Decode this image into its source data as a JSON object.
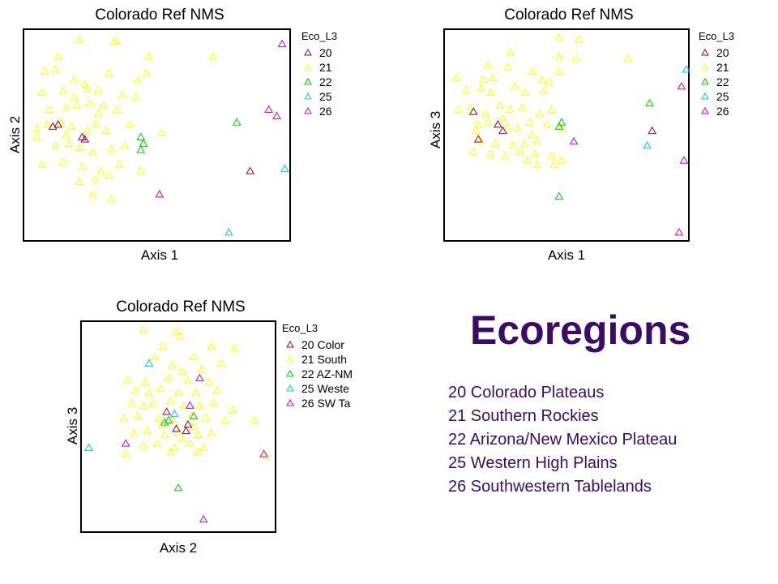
{
  "heading": "Ecoregions",
  "ecoregion_key": [
    "20 Colorado Plateaus",
    "21  Southern Rockies",
    "22  Arizona/New Mexico Plateau",
    "25  Western High Plains",
    "26  Southwestern Tablelands"
  ],
  "colors": {
    "20": "#990033",
    "21": "#ffff00",
    "22": "#00cc00",
    "25": "#00cccc",
    "26": "#cc00cc"
  },
  "chart_data": [
    {
      "type": "scatter",
      "title": "Colorado Ref NMS",
      "xlabel": "Axis 1",
      "ylabel": "Axis 2",
      "legend_title": "Eco_L3",
      "legend_position": "right",
      "legend_entries": [
        "20",
        "21",
        "22",
        "25",
        "26"
      ],
      "series": [
        {
          "name": "20",
          "points": [
            [
              0.11,
              0.54
            ],
            [
              0.13,
              0.55
            ],
            [
              0.23,
              0.48
            ],
            [
              0.22,
              0.49
            ],
            [
              0.85,
              0.33
            ]
          ]
        },
        {
          "name": "21",
          "points": [
            [
              0.21,
              0.95
            ],
            [
              0.34,
              0.94
            ],
            [
              0.35,
              0.94
            ],
            [
              0.13,
              0.87
            ],
            [
              0.47,
              0.87
            ],
            [
              0.71,
              0.87
            ],
            [
              0.08,
              0.8
            ],
            [
              0.12,
              0.81
            ],
            [
              0.19,
              0.76
            ],
            [
              0.23,
              0.74
            ],
            [
              0.32,
              0.79
            ],
            [
              0.46,
              0.79
            ],
            [
              0.07,
              0.7
            ],
            [
              0.15,
              0.71
            ],
            [
              0.24,
              0.72
            ],
            [
              0.28,
              0.71
            ],
            [
              0.37,
              0.69
            ],
            [
              0.42,
              0.68
            ],
            [
              0.1,
              0.62
            ],
            [
              0.16,
              0.63
            ],
            [
              0.2,
              0.64
            ],
            [
              0.25,
              0.65
            ],
            [
              0.3,
              0.64
            ],
            [
              0.35,
              0.62
            ],
            [
              0.05,
              0.53
            ],
            [
              0.09,
              0.55
            ],
            [
              0.14,
              0.56
            ],
            [
              0.18,
              0.54
            ],
            [
              0.27,
              0.55
            ],
            [
              0.31,
              0.52
            ],
            [
              0.4,
              0.55
            ],
            [
              0.52,
              0.51
            ],
            [
              0.12,
              0.45
            ],
            [
              0.17,
              0.46
            ],
            [
              0.21,
              0.44
            ],
            [
              0.26,
              0.42
            ],
            [
              0.33,
              0.43
            ],
            [
              0.38,
              0.45
            ],
            [
              0.07,
              0.36
            ],
            [
              0.15,
              0.37
            ],
            [
              0.22,
              0.35
            ],
            [
              0.29,
              0.33
            ],
            [
              0.36,
              0.36
            ],
            [
              0.44,
              0.33
            ],
            [
              0.21,
              0.28
            ],
            [
              0.27,
              0.29
            ],
            [
              0.32,
              0.31
            ],
            [
              0.26,
              0.22
            ],
            [
              0.33,
              0.2
            ],
            [
              0.05,
              0.49
            ],
            [
              0.43,
              0.76
            ],
            [
              0.19,
              0.68
            ],
            [
              0.28,
              0.6
            ],
            [
              0.24,
              0.52
            ],
            [
              0.16,
              0.5
            ]
          ]
        },
        {
          "name": "22",
          "points": [
            [
              0.8,
              0.56
            ],
            [
              0.44,
              0.49
            ],
            [
              0.45,
              0.46
            ],
            [
              0.44,
              0.43
            ]
          ]
        },
        {
          "name": "25",
          "points": [
            [
              0.98,
              0.34
            ],
            [
              0.77,
              0.04
            ]
          ]
        },
        {
          "name": "26",
          "points": [
            [
              0.97,
              0.93
            ],
            [
              0.92,
              0.62
            ],
            [
              0.95,
              0.59
            ],
            [
              0.51,
              0.22
            ]
          ]
        }
      ]
    },
    {
      "type": "scatter",
      "title": "Colorado Ref NMS",
      "xlabel": "Axis 1",
      "ylabel": "Axis 3",
      "legend_title": "Eco_L3",
      "legend_position": "right",
      "legend_entries": [
        "20",
        "21",
        "22",
        "25",
        "26"
      ],
      "series": [
        {
          "name": "20",
          "points": [
            [
              0.12,
              0.61
            ],
            [
              0.22,
              0.55
            ],
            [
              0.24,
              0.52
            ],
            [
              0.14,
              0.48
            ],
            [
              0.85,
              0.52
            ]
          ]
        },
        {
          "name": "21",
          "points": [
            [
              0.47,
              0.96
            ],
            [
              0.55,
              0.95
            ],
            [
              0.27,
              0.89
            ],
            [
              0.47,
              0.87
            ],
            [
              0.54,
              0.86
            ],
            [
              0.75,
              0.86
            ],
            [
              0.18,
              0.83
            ],
            [
              0.26,
              0.82
            ],
            [
              0.36,
              0.8
            ],
            [
              0.47,
              0.8
            ],
            [
              0.05,
              0.77
            ],
            [
              0.16,
              0.76
            ],
            [
              0.2,
              0.77
            ],
            [
              0.4,
              0.76
            ],
            [
              0.43,
              0.75
            ],
            [
              0.09,
              0.71
            ],
            [
              0.15,
              0.72
            ],
            [
              0.19,
              0.7
            ],
            [
              0.29,
              0.73
            ],
            [
              0.33,
              0.7
            ],
            [
              0.41,
              0.71
            ],
            [
              0.06,
              0.62
            ],
            [
              0.11,
              0.63
            ],
            [
              0.17,
              0.6
            ],
            [
              0.23,
              0.64
            ],
            [
              0.27,
              0.62
            ],
            [
              0.32,
              0.63
            ],
            [
              0.39,
              0.6
            ],
            [
              0.44,
              0.62
            ],
            [
              0.14,
              0.55
            ],
            [
              0.18,
              0.56
            ],
            [
              0.26,
              0.54
            ],
            [
              0.3,
              0.53
            ],
            [
              0.35,
              0.56
            ],
            [
              0.42,
              0.55
            ],
            [
              0.48,
              0.53
            ],
            [
              0.15,
              0.47
            ],
            [
              0.21,
              0.46
            ],
            [
              0.28,
              0.45
            ],
            [
              0.33,
              0.46
            ],
            [
              0.38,
              0.47
            ],
            [
              0.12,
              0.42
            ],
            [
              0.19,
              0.41
            ],
            [
              0.25,
              0.4
            ],
            [
              0.31,
              0.42
            ],
            [
              0.37,
              0.41
            ],
            [
              0.44,
              0.4
            ],
            [
              0.34,
              0.38
            ],
            [
              0.38,
              0.36
            ],
            [
              0.48,
              0.38
            ],
            [
              0.45,
              0.36
            ],
            [
              0.24,
              0.58
            ],
            [
              0.13,
              0.52
            ],
            [
              0.36,
              0.5
            ]
          ]
        },
        {
          "name": "22",
          "points": [
            [
              0.84,
              0.65
            ],
            [
              0.48,
              0.56
            ],
            [
              0.47,
              0.54
            ],
            [
              0.47,
              0.21
            ]
          ]
        },
        {
          "name": "25",
          "points": [
            [
              0.99,
              0.81
            ],
            [
              0.83,
              0.45
            ]
          ]
        },
        {
          "name": "26",
          "points": [
            [
              0.97,
              0.73
            ],
            [
              0.53,
              0.47
            ],
            [
              0.98,
              0.38
            ],
            [
              0.96,
              0.04
            ]
          ]
        }
      ]
    },
    {
      "type": "scatter",
      "title": "Colorado Ref NMS",
      "xlabel": "Axis 2",
      "ylabel": "Axis 3",
      "legend_title": "Eco_L3",
      "legend_position": "right",
      "legend_entries": [
        "20  Color",
        "21  South",
        "22  AZ-NM",
        "25  Weste",
        "26 SW Ta"
      ],
      "series": [
        {
          "name": "20",
          "points": [
            [
              0.44,
              0.57
            ],
            [
              0.55,
              0.51
            ],
            [
              0.49,
              0.49
            ],
            [
              0.54,
              0.48
            ]
          ]
        },
        {
          "name": "21",
          "points": [
            [
              0.32,
              0.96
            ],
            [
              0.49,
              0.95
            ],
            [
              0.51,
              0.93
            ],
            [
              0.42,
              0.88
            ],
            [
              0.67,
              0.88
            ],
            [
              0.79,
              0.87
            ],
            [
              0.38,
              0.83
            ],
            [
              0.58,
              0.83
            ],
            [
              0.72,
              0.8
            ],
            [
              0.47,
              0.79
            ],
            [
              0.52,
              0.76
            ],
            [
              0.62,
              0.77
            ],
            [
              0.24,
              0.72
            ],
            [
              0.33,
              0.71
            ],
            [
              0.45,
              0.73
            ],
            [
              0.55,
              0.72
            ],
            [
              0.66,
              0.71
            ],
            [
              0.28,
              0.67
            ],
            [
              0.35,
              0.66
            ],
            [
              0.41,
              0.68
            ],
            [
              0.5,
              0.66
            ],
            [
              0.59,
              0.66
            ],
            [
              0.7,
              0.67
            ],
            [
              0.26,
              0.61
            ],
            [
              0.32,
              0.6
            ],
            [
              0.37,
              0.61
            ],
            [
              0.46,
              0.62
            ],
            [
              0.53,
              0.6
            ],
            [
              0.61,
              0.6
            ],
            [
              0.68,
              0.61
            ],
            [
              0.78,
              0.58
            ],
            [
              0.22,
              0.54
            ],
            [
              0.29,
              0.55
            ],
            [
              0.4,
              0.54
            ],
            [
              0.47,
              0.53
            ],
            [
              0.57,
              0.55
            ],
            [
              0.64,
              0.54
            ],
            [
              0.74,
              0.53
            ],
            [
              0.89,
              0.53
            ],
            [
              0.27,
              0.47
            ],
            [
              0.34,
              0.48
            ],
            [
              0.43,
              0.46
            ],
            [
              0.5,
              0.47
            ],
            [
              0.6,
              0.46
            ],
            [
              0.67,
              0.47
            ],
            [
              0.32,
              0.41
            ],
            [
              0.39,
              0.42
            ],
            [
              0.48,
              0.4
            ],
            [
              0.56,
              0.42
            ],
            [
              0.63,
              0.4
            ],
            [
              0.23,
              0.37
            ],
            [
              0.46,
              0.38
            ],
            [
              0.6,
              0.38
            ],
            [
              0.95,
              0.36
            ],
            [
              0.52,
              0.44
            ],
            [
              0.42,
              0.51
            ],
            [
              0.58,
              0.5
            ]
          ]
        },
        {
          "name": "22",
          "points": [
            [
              0.58,
              0.55
            ],
            [
              0.45,
              0.53
            ],
            [
              0.43,
              0.52
            ],
            [
              0.5,
              0.21
            ]
          ]
        },
        {
          "name": "25",
          "points": [
            [
              0.35,
              0.8
            ],
            [
              0.48,
              0.56
            ],
            [
              0.04,
              0.4
            ]
          ]
        },
        {
          "name": "26",
          "points": [
            [
              0.61,
              0.73
            ],
            [
              0.56,
              0.6
            ],
            [
              0.23,
              0.42
            ],
            [
              0.94,
              0.37
            ],
            [
              0.63,
              0.06
            ]
          ]
        }
      ]
    }
  ]
}
